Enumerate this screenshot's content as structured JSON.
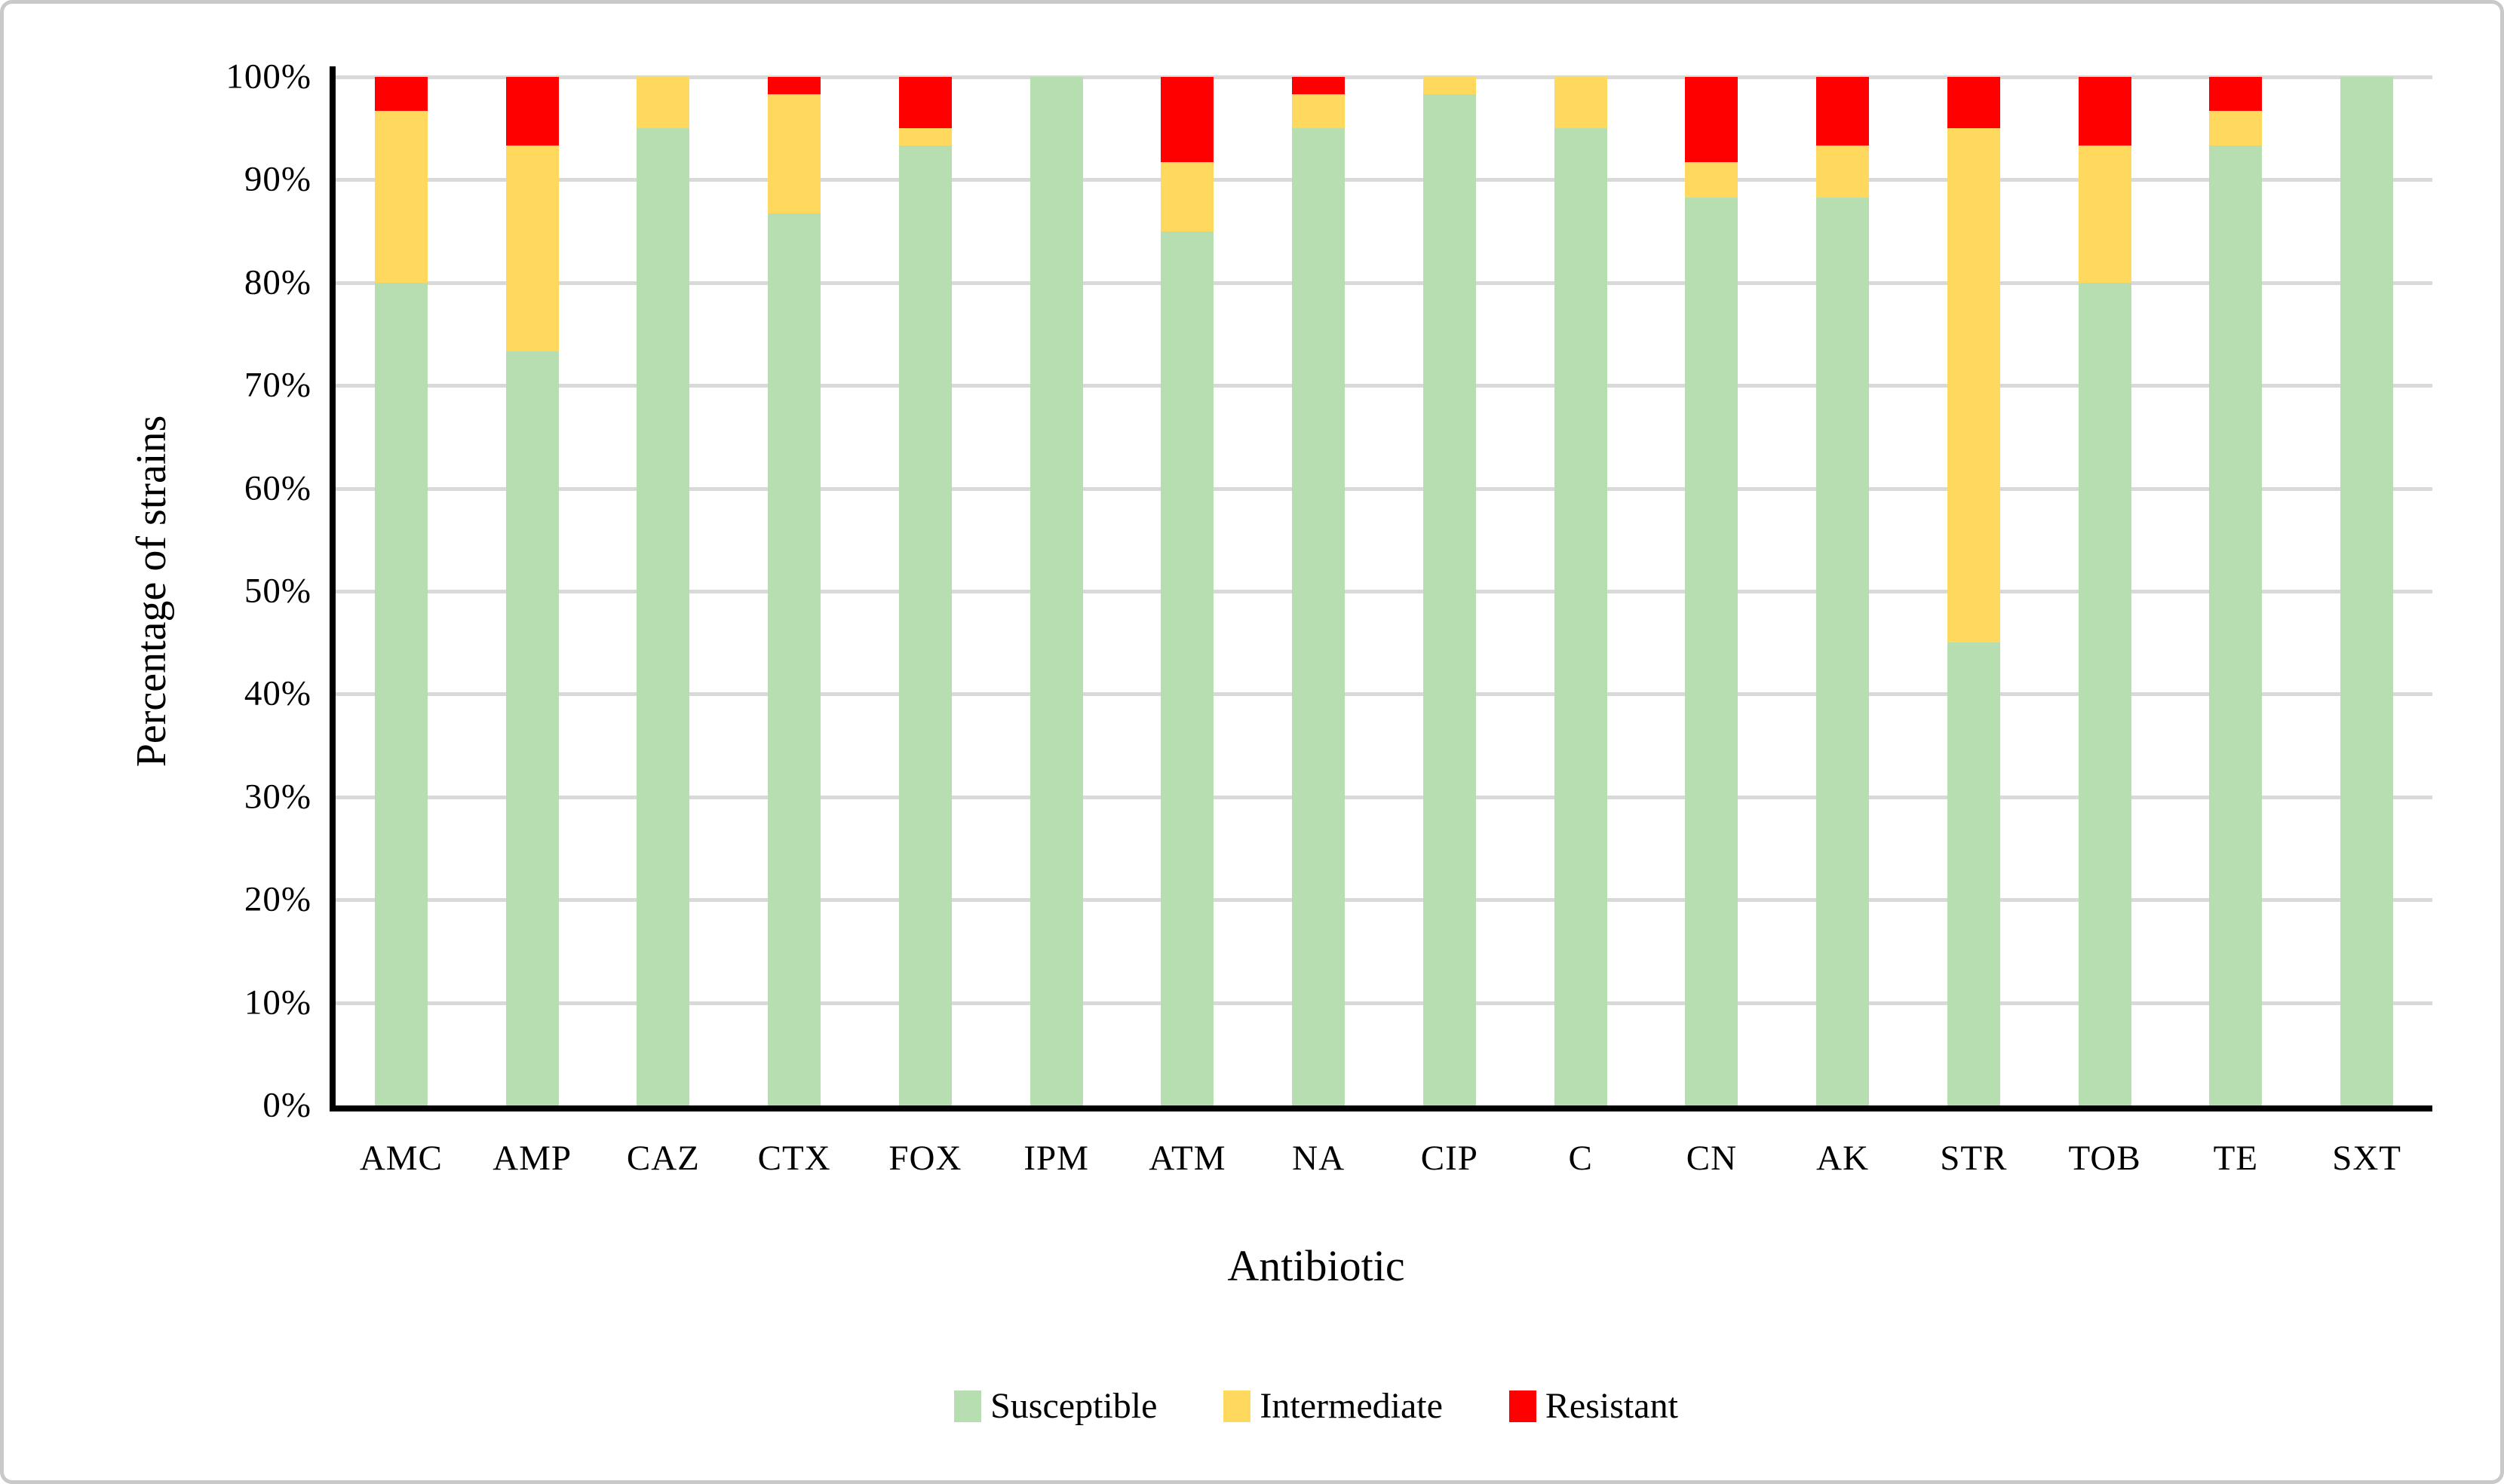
{
  "figure": {
    "background": "#ffffff",
    "border_color": "#c9c9c9"
  },
  "chart_data": {
    "type": "bar",
    "stacked": true,
    "title": "",
    "xlabel": "Antibiotic",
    "ylabel": "Percentage of strains",
    "ylim": [
      0,
      100
    ],
    "y_ticks": [
      "100%",
      "90%",
      "80%",
      "70%",
      "60%",
      "50%",
      "40%",
      "30%",
      "20%",
      "10%",
      "0%"
    ],
    "grid": "horizontal",
    "gridline_color": "#d9d9d9",
    "axis_color": "#000000",
    "legend_position": "bottom",
    "categories": [
      "AMC",
      "AMP",
      "CAZ",
      "CTX",
      "FOX",
      "IPM",
      "ATM",
      "NA",
      "CIP",
      "C",
      "CN",
      "AK",
      "STR",
      "TOB",
      "TE",
      "SXT"
    ],
    "series": [
      {
        "name": "Susceptible",
        "color": "#b6deb0",
        "values": [
          80,
          73.3,
          95,
          86.7,
          93.3,
          100,
          85,
          95,
          98.3,
          95,
          88.3,
          88.3,
          45,
          80,
          93.3,
          100
        ]
      },
      {
        "name": "Intermediate",
        "color": "#fed95e",
        "values": [
          16.7,
          20,
          5,
          11.6,
          1.7,
          0,
          6.7,
          3.3,
          1.7,
          5,
          3.4,
          5,
          50,
          13.3,
          3.4,
          0
        ]
      },
      {
        "name": "Resistant",
        "color": "#ff0000",
        "values": [
          3.3,
          6.7,
          0,
          1.7,
          5,
          0,
          8.3,
          1.7,
          0,
          0,
          8.3,
          6.7,
          5,
          6.7,
          3.3,
          0
        ]
      }
    ]
  }
}
